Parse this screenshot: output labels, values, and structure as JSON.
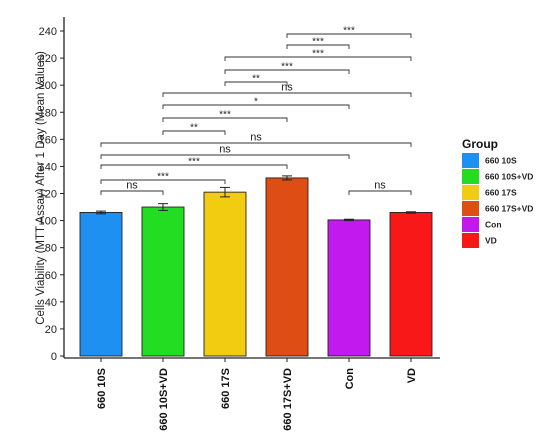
{
  "chart_data": {
    "type": "bar",
    "ylabel": "Cells Viability (MTT Assay) After 1 Day (Mean Values)",
    "xlabel": "",
    "title": "",
    "ylim": [
      0,
      240
    ],
    "yticks": [
      0,
      20,
      40,
      60,
      80,
      100,
      120,
      140,
      160,
      180,
      200,
      220,
      240
    ],
    "grid": false,
    "categories": [
      "660 10S",
      "660 10S+VD",
      "660 17S",
      "660 17S+VD",
      "Con",
      "VD"
    ],
    "values": [
      106,
      110,
      121,
      131.5,
      100.5,
      106
    ],
    "errors": [
      1,
      2.5,
      3.5,
      1.5,
      0.5,
      0.5
    ],
    "colors": [
      "#1E90F2",
      "#22DD22",
      "#F2CC11",
      "#DD4D14",
      "#C219EE",
      "#F81818"
    ],
    "legend": {
      "title": "Group",
      "position": "right",
      "items": [
        "660 10S",
        "660 10S+VD",
        "660 17S",
        "660 17S+VD",
        "Con",
        "VD"
      ]
    },
    "comparisons": [
      {
        "from": "660 10S",
        "to": "660 10S+VD",
        "label": "ns"
      },
      {
        "from": "660 10S",
        "to": "660 17S",
        "label": "***"
      },
      {
        "from": "660 10S",
        "to": "660 17S+VD",
        "label": "***"
      },
      {
        "from": "660 10S",
        "to": "Con",
        "label": "ns"
      },
      {
        "from": "660 10S",
        "to": "VD",
        "label": "ns"
      },
      {
        "from": "660 10S+VD",
        "to": "660 17S",
        "label": "**"
      },
      {
        "from": "660 10S+VD",
        "to": "660 17S+VD",
        "label": "***"
      },
      {
        "from": "660 10S+VD",
        "to": "Con",
        "label": "*"
      },
      {
        "from": "660 10S+VD",
        "to": "VD",
        "label": "ns"
      },
      {
        "from": "660 17S",
        "to": "660 17S+VD",
        "label": "**"
      },
      {
        "from": "660 17S",
        "to": "Con",
        "label": "***"
      },
      {
        "from": "660 17S",
        "to": "VD",
        "label": "***"
      },
      {
        "from": "660 17S+VD",
        "to": "Con",
        "label": "***"
      },
      {
        "from": "660 17S+VD",
        "to": "VD",
        "label": "***"
      },
      {
        "from": "Con",
        "to": "VD",
        "label": "ns"
      }
    ]
  }
}
